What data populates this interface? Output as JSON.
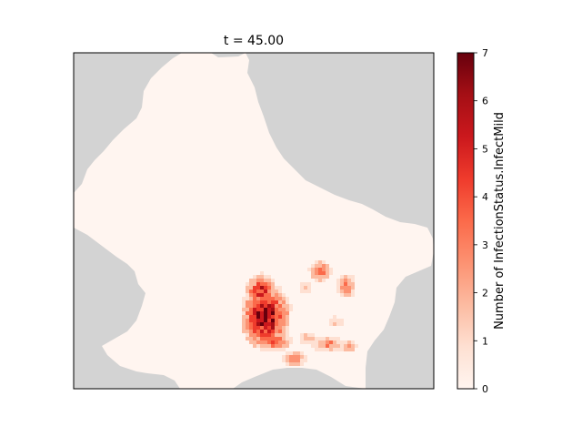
{
  "chart_data": {
    "type": "heatmap",
    "title": "t = 45.00",
    "xlabel": "",
    "ylabel": "",
    "colorbar": {
      "label": "Number of InfectionStatus.InfectMild",
      "min": 0,
      "max": 7,
      "ticks": [
        "0",
        "1",
        "2",
        "3",
        "4",
        "5",
        "6",
        "7"
      ],
      "colormap": "Reds"
    },
    "background_color": "#d3d3d3",
    "grid": false,
    "hotspots": [
      {
        "region": "south-west cluster",
        "peak_value": 7
      },
      {
        "region": "south-east cluster",
        "peak_value": 4
      },
      {
        "region": "southern fringe",
        "peak_value": 4
      }
    ]
  },
  "colors": {
    "land_zero": "#fff5f0",
    "outside_region": "#d3d3d3",
    "ramp": [
      "#fff5f0",
      "#fee0d2",
      "#fcbba1",
      "#fc9272",
      "#fb6a4a",
      "#ef3b2c",
      "#cb181d",
      "#a50f15",
      "#67000d"
    ]
  }
}
